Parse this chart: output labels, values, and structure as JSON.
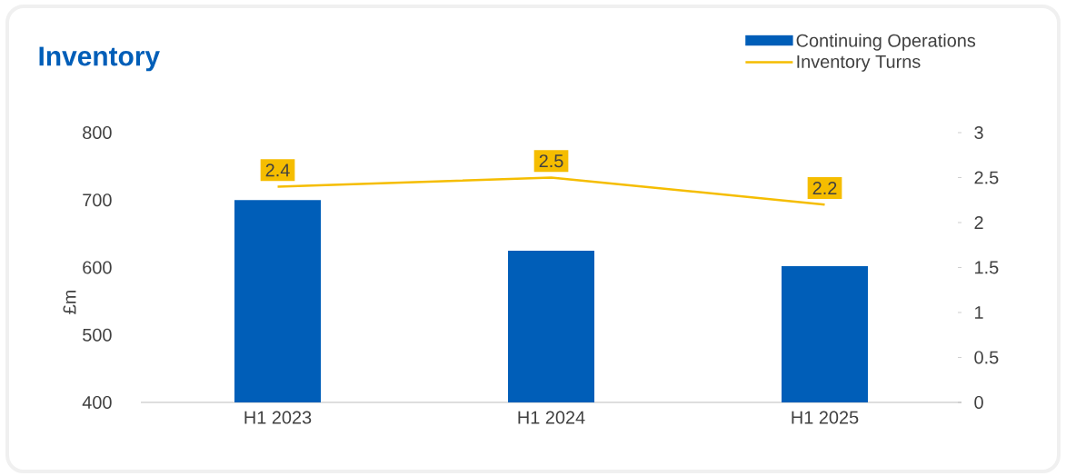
{
  "chart_data": {
    "type": "bar",
    "title": "Inventory",
    "ylabel": "£m",
    "categories": [
      "H1 2023",
      "H1 2024",
      "H1 2025"
    ],
    "series": [
      {
        "name": "Continuing Operations",
        "color": "#005eb8",
        "values": [
          700,
          625,
          602
        ]
      },
      {
        "name": "Inventory Turns",
        "type": "line",
        "axis": "y2",
        "color": "#f5bd00",
        "values": [
          2.4,
          2.5,
          2.2
        ],
        "data_labels": true
      }
    ],
    "ylim": [
      400,
      800
    ],
    "yticks": [
      400,
      500,
      600,
      700,
      800
    ],
    "y2lim": [
      0,
      3
    ],
    "y2ticks": [
      0,
      0.5,
      1,
      1.5,
      2,
      2.5,
      3
    ],
    "legend": "top right",
    "grid": false
  }
}
